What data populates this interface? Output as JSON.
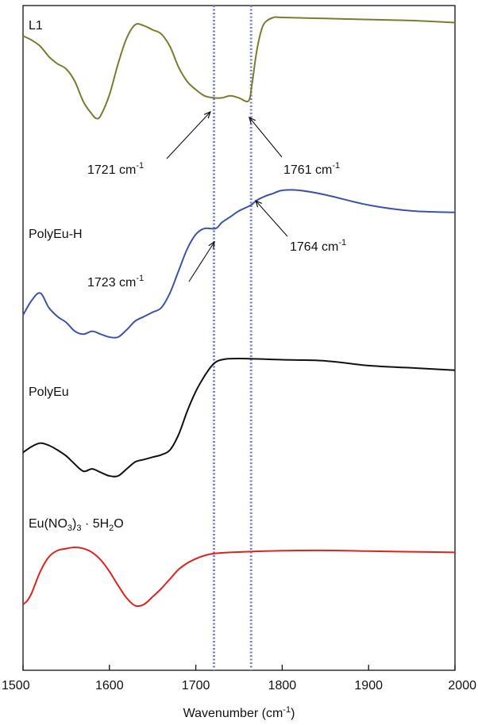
{
  "chart_data": {
    "type": "line",
    "xlabel": "Wavenumber",
    "xlabel_unit_base": "(cm",
    "xlabel_unit_sup": "-1",
    "xlabel_unit_close": ")",
    "xlim": [
      1500,
      2000
    ],
    "x_ticks": [
      "1500",
      "1600",
      "1700",
      "1800",
      "1900",
      "2000"
    ],
    "y_axis": "stacked offset, unlabeled",
    "grid": false,
    "reference_lines": [
      {
        "x": 1721,
        "style": "dotted",
        "color": "#7b7fd0"
      },
      {
        "x": 1764,
        "style": "dotted",
        "color": "#7b7fd0"
      }
    ],
    "series": [
      {
        "name": "L1",
        "color": "#7c7c2e",
        "x": [
          1500,
          1510,
          1520,
          1530,
          1540,
          1550,
          1560,
          1570,
          1580,
          1585,
          1590,
          1600,
          1610,
          1620,
          1630,
          1640,
          1650,
          1660,
          1670,
          1680,
          1690,
          1700,
          1710,
          1721,
          1730,
          1740,
          1750,
          1761,
          1765,
          1770,
          1775,
          1780,
          1790,
          1800,
          1850,
          1900,
          1950,
          2000
        ],
        "y": [
          0.82,
          0.78,
          0.72,
          0.62,
          0.55,
          0.5,
          0.38,
          0.18,
          0.06,
          0.02,
          0.05,
          0.25,
          0.55,
          0.8,
          0.93,
          0.92,
          0.88,
          0.84,
          0.72,
          0.52,
          0.38,
          0.3,
          0.24,
          0.22,
          0.22,
          0.24,
          0.22,
          0.19,
          0.35,
          0.65,
          0.85,
          0.95,
          1.0,
          1.0,
          0.99,
          0.98,
          0.97,
          0.95
        ]
      },
      {
        "name": "PolyEu-H",
        "color": "#3c53a8",
        "x": [
          1500,
          1510,
          1520,
          1530,
          1540,
          1550,
          1560,
          1570,
          1580,
          1590,
          1600,
          1610,
          1620,
          1630,
          1640,
          1650,
          1660,
          1670,
          1680,
          1690,
          1700,
          1710,
          1723,
          1730,
          1740,
          1750,
          1764,
          1770,
          1780,
          1790,
          1800,
          1820,
          1850,
          1900,
          1950,
          2000
        ],
        "y": [
          0.15,
          0.25,
          0.3,
          0.2,
          0.14,
          0.1,
          0.04,
          0.02,
          0.04,
          0.02,
          0.0,
          0.0,
          0.05,
          0.11,
          0.14,
          0.17,
          0.2,
          0.3,
          0.45,
          0.6,
          0.7,
          0.74,
          0.74,
          0.78,
          0.82,
          0.86,
          0.9,
          0.93,
          0.96,
          0.98,
          1.0,
          1.0,
          0.97,
          0.9,
          0.86,
          0.85
        ]
      },
      {
        "name": "PolyEu",
        "color": "#111111",
        "x": [
          1500,
          1510,
          1520,
          1530,
          1540,
          1550,
          1560,
          1570,
          1580,
          1590,
          1600,
          1610,
          1620,
          1630,
          1640,
          1650,
          1660,
          1670,
          1680,
          1690,
          1700,
          1710,
          1720,
          1730,
          1750,
          1800,
          1850,
          1900,
          1950,
          2000
        ],
        "y": [
          0.2,
          0.25,
          0.28,
          0.26,
          0.22,
          0.17,
          0.1,
          0.04,
          0.06,
          0.03,
          0.0,
          0.0,
          0.06,
          0.12,
          0.14,
          0.16,
          0.18,
          0.22,
          0.35,
          0.55,
          0.72,
          0.85,
          0.95,
          0.99,
          1.0,
          0.99,
          0.98,
          0.94,
          0.92,
          0.9
        ]
      },
      {
        "name": "Eu(NO3)3 · 5H2O",
        "color": "#e0221e",
        "x": [
          1500,
          1505,
          1510,
          1520,
          1530,
          1540,
          1550,
          1560,
          1570,
          1580,
          1590,
          1600,
          1610,
          1620,
          1630,
          1640,
          1650,
          1660,
          1670,
          1680,
          1690,
          1700,
          1710,
          1720,
          1740,
          1780,
          1820,
          1860,
          1900,
          1950,
          2000
        ],
        "y": [
          0.1,
          0.16,
          0.28,
          0.62,
          0.85,
          0.95,
          0.98,
          1.0,
          0.98,
          0.92,
          0.8,
          0.62,
          0.4,
          0.2,
          0.08,
          0.1,
          0.22,
          0.35,
          0.5,
          0.65,
          0.75,
          0.82,
          0.87,
          0.9,
          0.92,
          0.94,
          0.95,
          0.95,
          0.94,
          0.93,
          0.92
        ]
      }
    ],
    "annotations": [
      {
        "base": "1721 cm",
        "sup": "-1",
        "x": 1721,
        "series": "L1"
      },
      {
        "base": "1761 cm",
        "sup": "-1",
        "x": 1761,
        "series": "L1"
      },
      {
        "base": "1723 cm",
        "sup": "-1",
        "x": 1723,
        "series": "PolyEu-H"
      },
      {
        "base": "1764 cm",
        "sup": "-1",
        "x": 1764,
        "series": "PolyEu-H"
      }
    ],
    "series_labels": [
      {
        "text": "L1"
      },
      {
        "text": "PolyEu-H"
      },
      {
        "text": "PolyEu"
      },
      {
        "parts": [
          "Eu(NO",
          "3",
          ")",
          "3",
          " · 5H",
          "2",
          "O"
        ]
      }
    ]
  }
}
